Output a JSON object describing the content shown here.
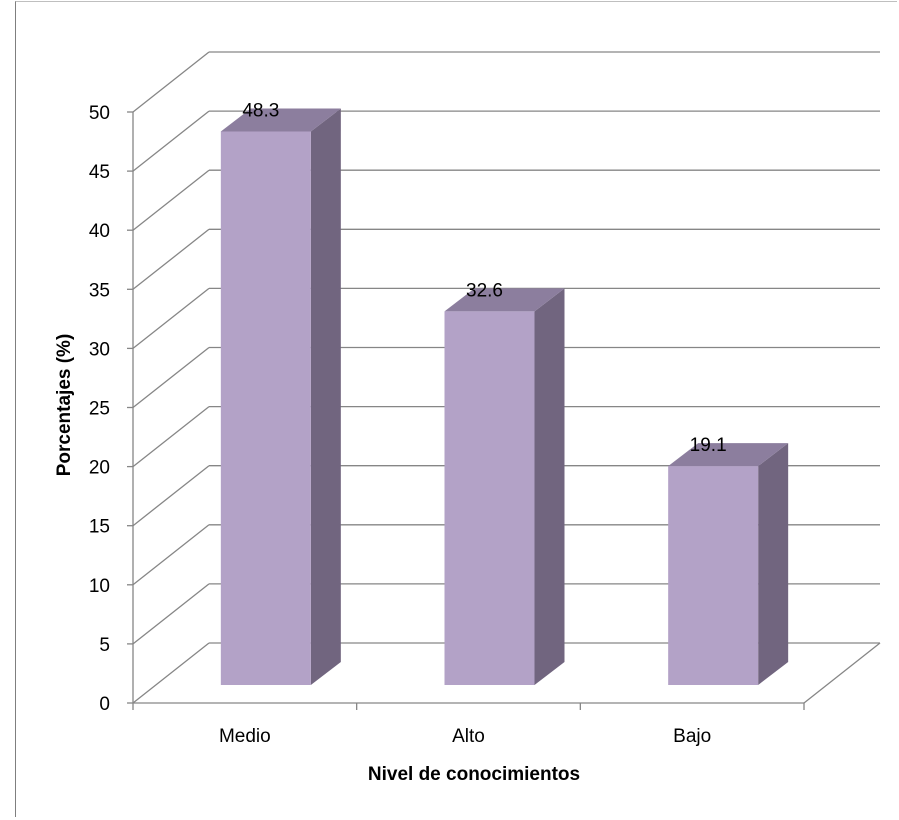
{
  "chart_data": {
    "type": "bar",
    "style": "3d-column",
    "categories": [
      "Medio",
      "Alto",
      "Bajo"
    ],
    "values": [
      48.3,
      32.6,
      19.1
    ],
    "data_labels": [
      "48.3",
      "32.6",
      "19.1"
    ],
    "title": "",
    "xlabel": "Nivel de conocimientos",
    "ylabel": "Porcentajes (%)",
    "ylim": [
      0,
      50
    ],
    "ytick_step": 5,
    "grid": true,
    "legend": false,
    "colors": {
      "bar_front": "#b3a2c7",
      "bar_side": "#71657f",
      "bar_top": "#8c7e9e",
      "grid": "#868686"
    }
  }
}
